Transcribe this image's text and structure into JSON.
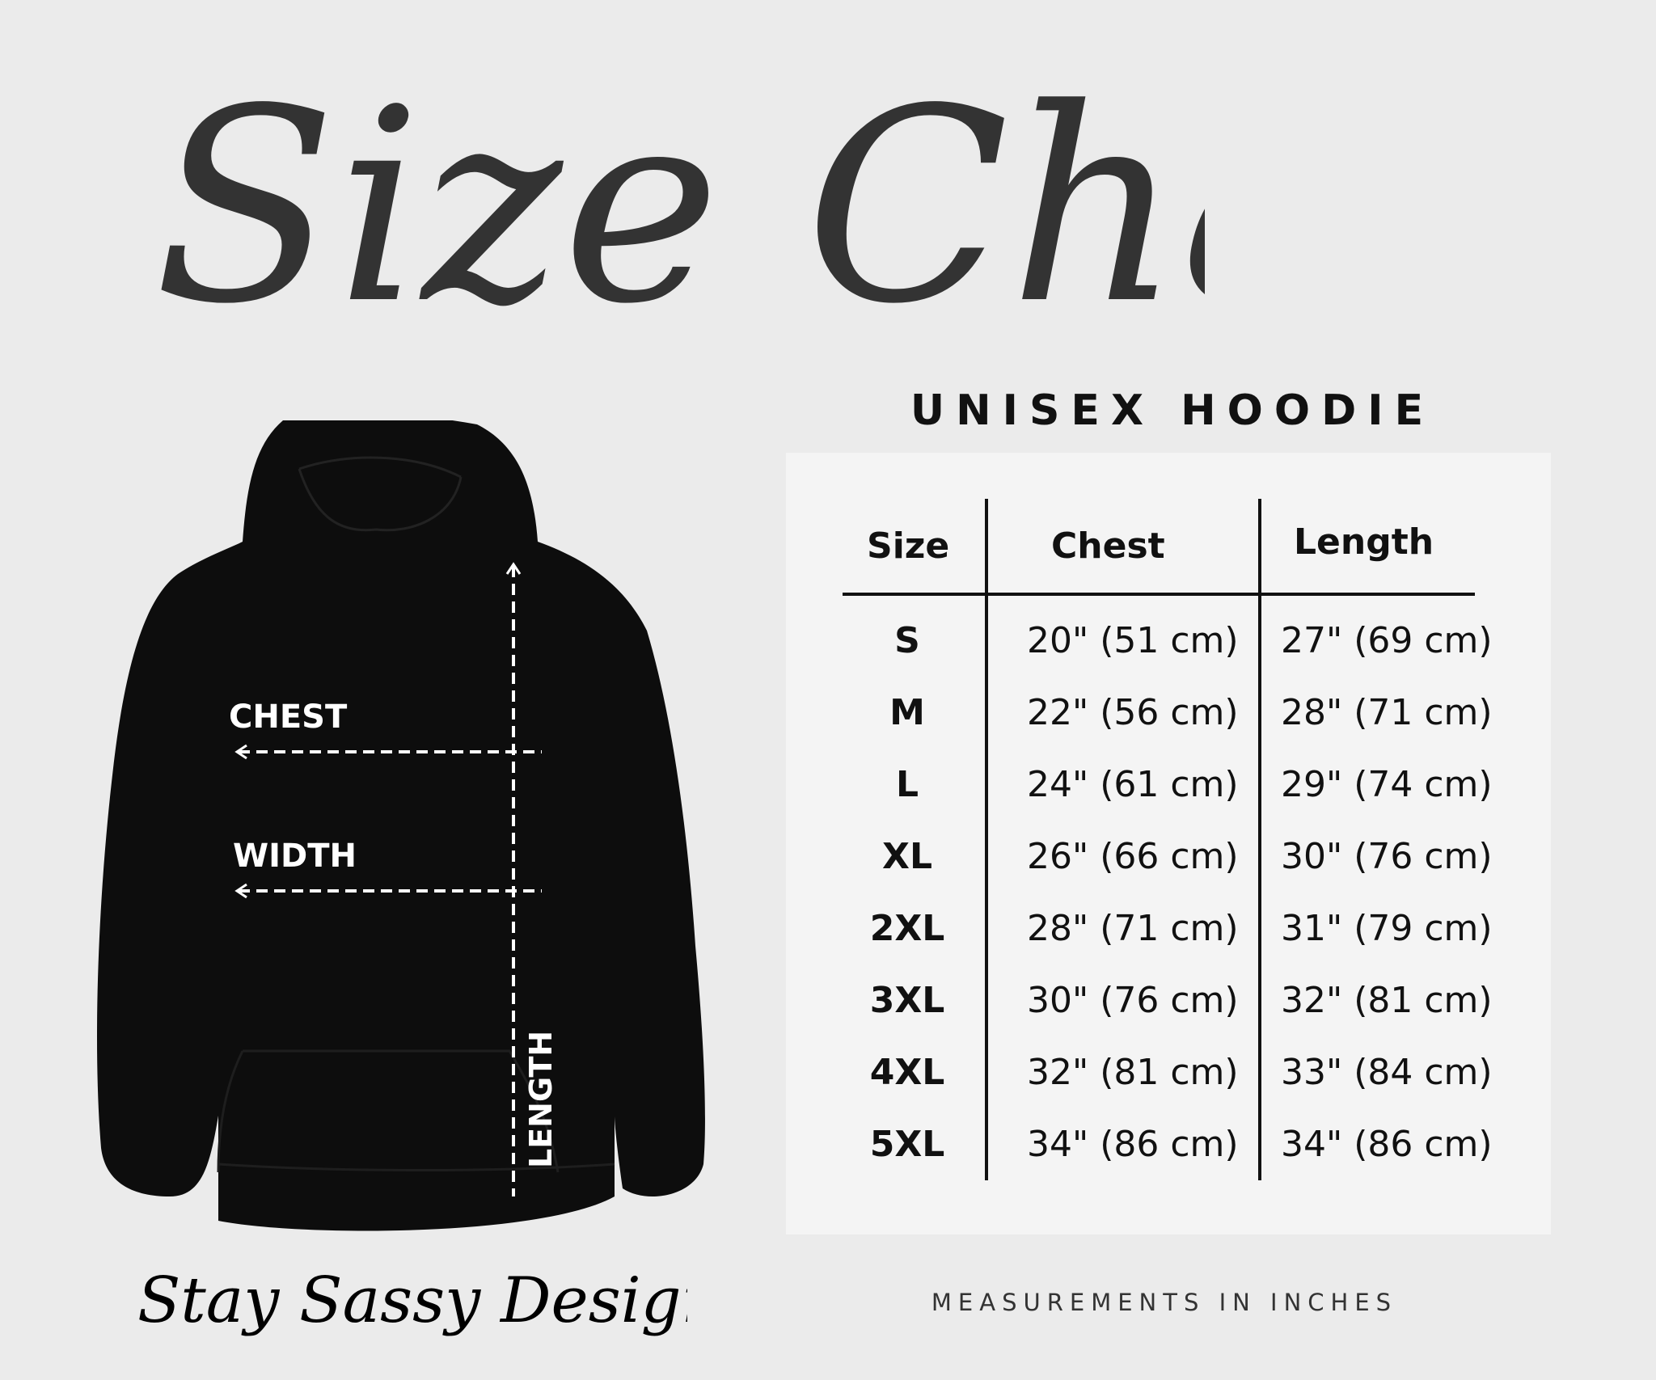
{
  "title": "Size Chart",
  "subtitle": "UNISEX HOODIE",
  "colors": {
    "background": "#ebebeb",
    "panel": "#f4f4f4",
    "text": "#111111",
    "hoodie": "#0d0d0d",
    "title": "#333333"
  },
  "hoodie_labels": {
    "chest": "CHEST",
    "width": "WIDTH",
    "length": "LENGTH"
  },
  "table": {
    "headers": [
      "Size",
      "Chest",
      "Length"
    ],
    "rows": [
      {
        "size": "S",
        "chest": "20\" (51 cm)",
        "length": "27\" (69 cm)"
      },
      {
        "size": "M",
        "chest": "22\" (56 cm)",
        "length": "28\" (71 cm)"
      },
      {
        "size": "L",
        "chest": "24\" (61 cm)",
        "length": "29\" (74 cm)"
      },
      {
        "size": "XL",
        "chest": "26\" (66 cm)",
        "length": "30\" (76 cm)"
      },
      {
        "size": "2XL",
        "chest": "28\" (71 cm)",
        "length": "31\" (79 cm)"
      },
      {
        "size": "3XL",
        "chest": "30\" (76 cm)",
        "length": "32\" (81 cm)"
      },
      {
        "size": "4XL",
        "chest": "32\" (81 cm)",
        "length": "33\" (84 cm)"
      },
      {
        "size": "5XL",
        "chest": "34\" (86 cm)",
        "length": "34\" (86 cm)"
      }
    ]
  },
  "footer": "MEASUREMENTS IN INCHES",
  "brand": "Stay Sassy Designs"
}
